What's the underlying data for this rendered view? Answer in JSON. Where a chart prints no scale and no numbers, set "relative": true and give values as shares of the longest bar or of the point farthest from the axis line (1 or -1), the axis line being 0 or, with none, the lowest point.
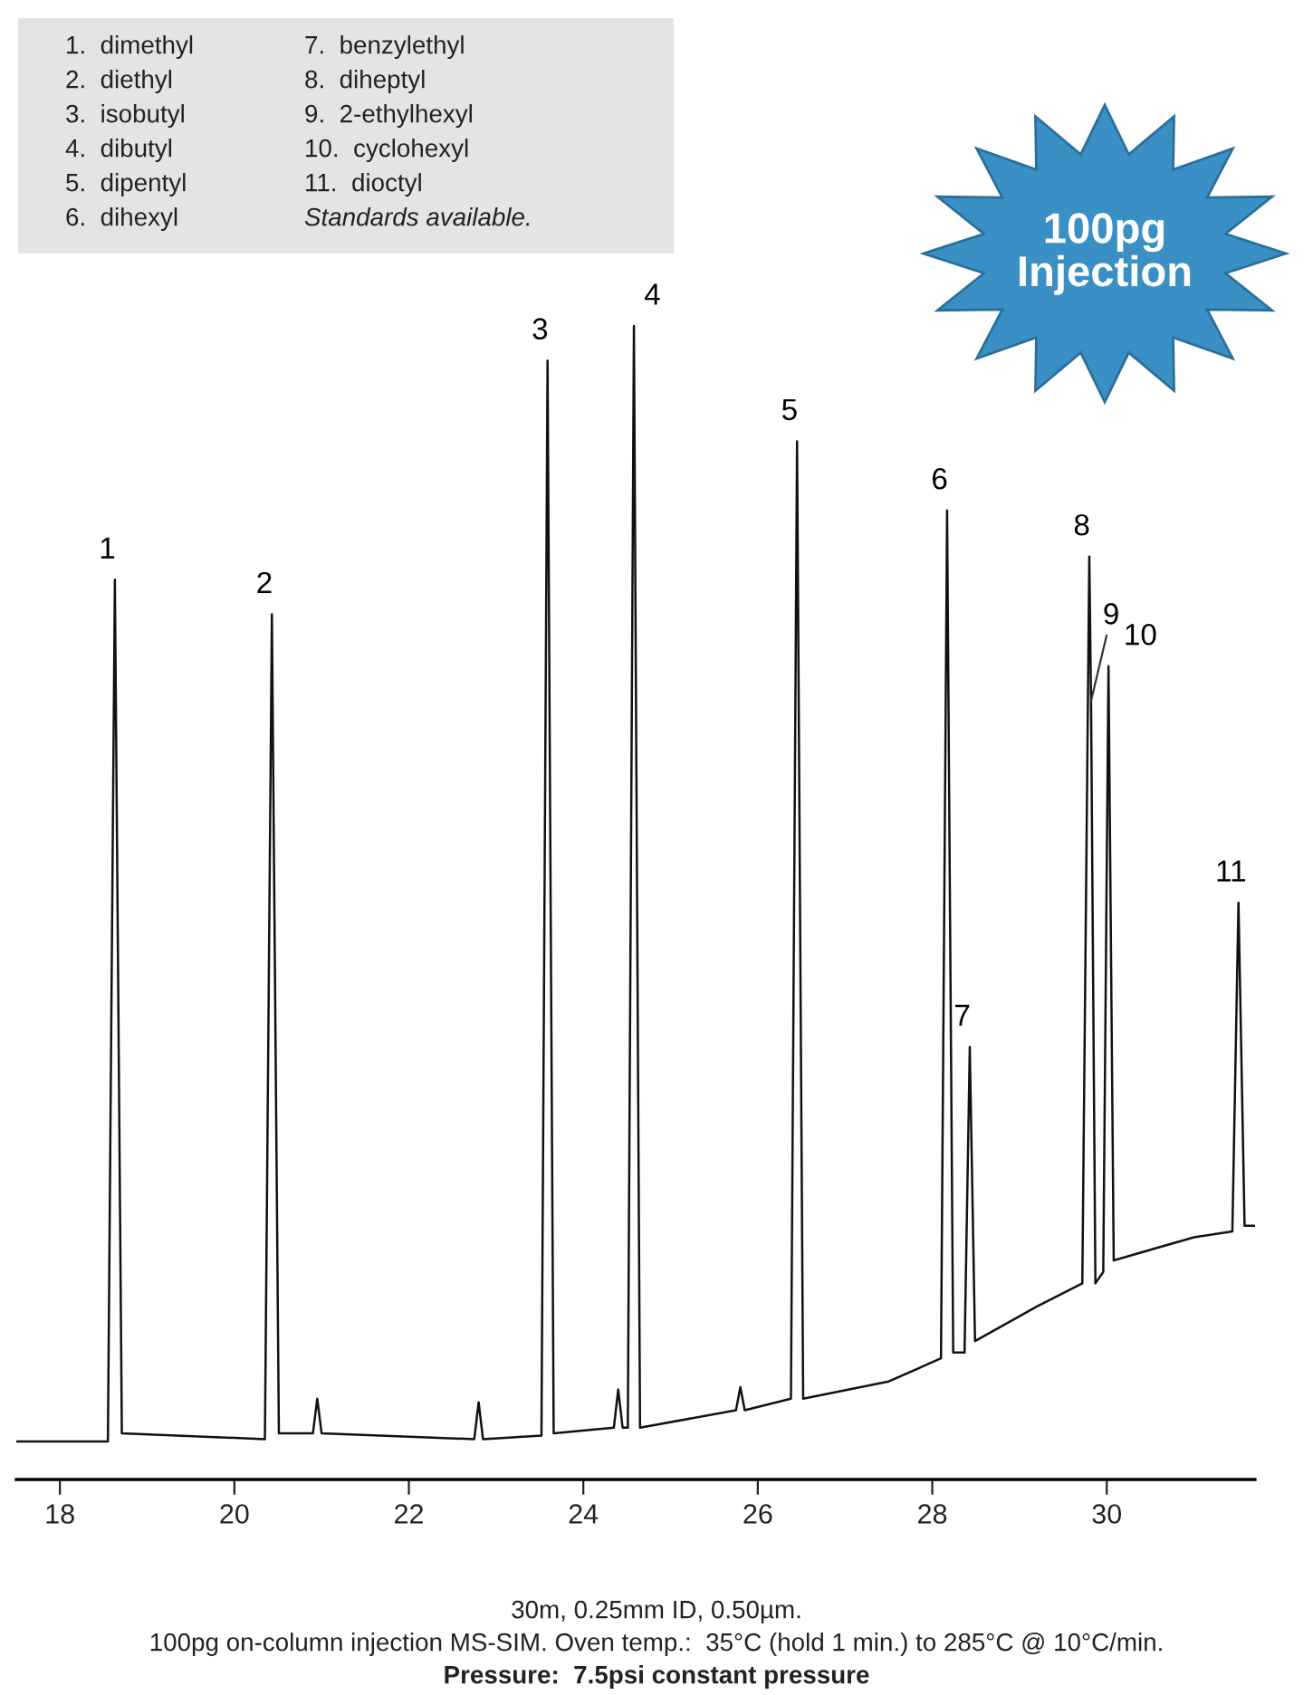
{
  "chart_data": {
    "type": "line",
    "relative": true,
    "xlim": [
      17.5,
      31.7
    ],
    "xticks": [
      18,
      20,
      22,
      24,
      26,
      28,
      30
    ],
    "grid": false,
    "legend": false,
    "marker": "none",
    "line_style": "solid",
    "x": [
      17.5,
      18.55,
      18.63,
      18.71,
      20.35,
      20.43,
      20.51,
      20.9,
      20.95,
      21.0,
      22.75,
      22.8,
      22.85,
      23.52,
      23.59,
      23.66,
      24.35,
      24.4,
      24.45,
      24.51,
      24.58,
      24.65,
      25.75,
      25.8,
      25.85,
      26.38,
      26.45,
      26.52,
      27.5,
      28.1,
      28.17,
      28.24,
      28.37,
      28.43,
      28.49,
      29.2,
      29.72,
      29.8,
      29.82,
      29.87,
      29.96,
      30.02,
      30.08,
      31.0,
      31.44,
      31.51,
      31.58,
      31.7
    ],
    "series": [
      {
        "color": "#111111",
        "values": [
          0.033,
          0.033,
          0.78,
          0.04,
          0.035,
          0.75,
          0.04,
          0.04,
          0.07,
          0.04,
          0.035,
          0.067,
          0.035,
          0.038,
          0.97,
          0.04,
          0.045,
          0.078,
          0.045,
          0.045,
          1.0,
          0.045,
          0.06,
          0.08,
          0.06,
          0.07,
          0.9,
          0.07,
          0.085,
          0.105,
          0.84,
          0.11,
          0.11,
          0.375,
          0.12,
          0.15,
          0.17,
          0.8,
          0.675,
          0.17,
          0.18,
          0.705,
          0.19,
          0.21,
          0.215,
          0.5,
          0.22,
          0.22
        ]
      }
    ],
    "annotations": [
      {
        "text": "1",
        "x": 18.63,
        "y": 0.78
      },
      {
        "text": "2",
        "x": 20.43,
        "y": 0.75
      },
      {
        "text": "3",
        "x": 23.59,
        "y": 0.97
      },
      {
        "text": "4",
        "x": 24.58,
        "y": 1.0
      },
      {
        "text": "5",
        "x": 26.45,
        "y": 0.9
      },
      {
        "text": "6",
        "x": 28.17,
        "y": 0.84
      },
      {
        "text": "7",
        "x": 28.43,
        "y": 0.375
      },
      {
        "text": "8",
        "x": 29.8,
        "y": 0.8
      },
      {
        "text": "9",
        "x": 29.82,
        "y": 0.675
      },
      {
        "text": "10",
        "x": 30.02,
        "y": 0.705
      },
      {
        "text": "11",
        "x": 31.51,
        "y": 0.5
      },
      "1.  dimethyl",
      "2.  diethyl",
      "3.  isobutyl",
      "4.  dibutyl",
      "5.  dipentyl",
      "6.  dihexyl",
      "7.  benzylethyl",
      "8.  diheptyl",
      "9.  2-ethylhexyl",
      "10.  cyclohexyl",
      "11.  dioctyl",
      "Standards available.",
      "100pg\nInjection",
      "30m, 0.25mm ID, 0.50µm.",
      "100pg on-column injection MS-SIM. Oven temp.:  35°C (hold 1 min.) to 285°C @ 10°C/min.",
      "Pressure:  7.5psi constant pressure"
    ]
  }
}
